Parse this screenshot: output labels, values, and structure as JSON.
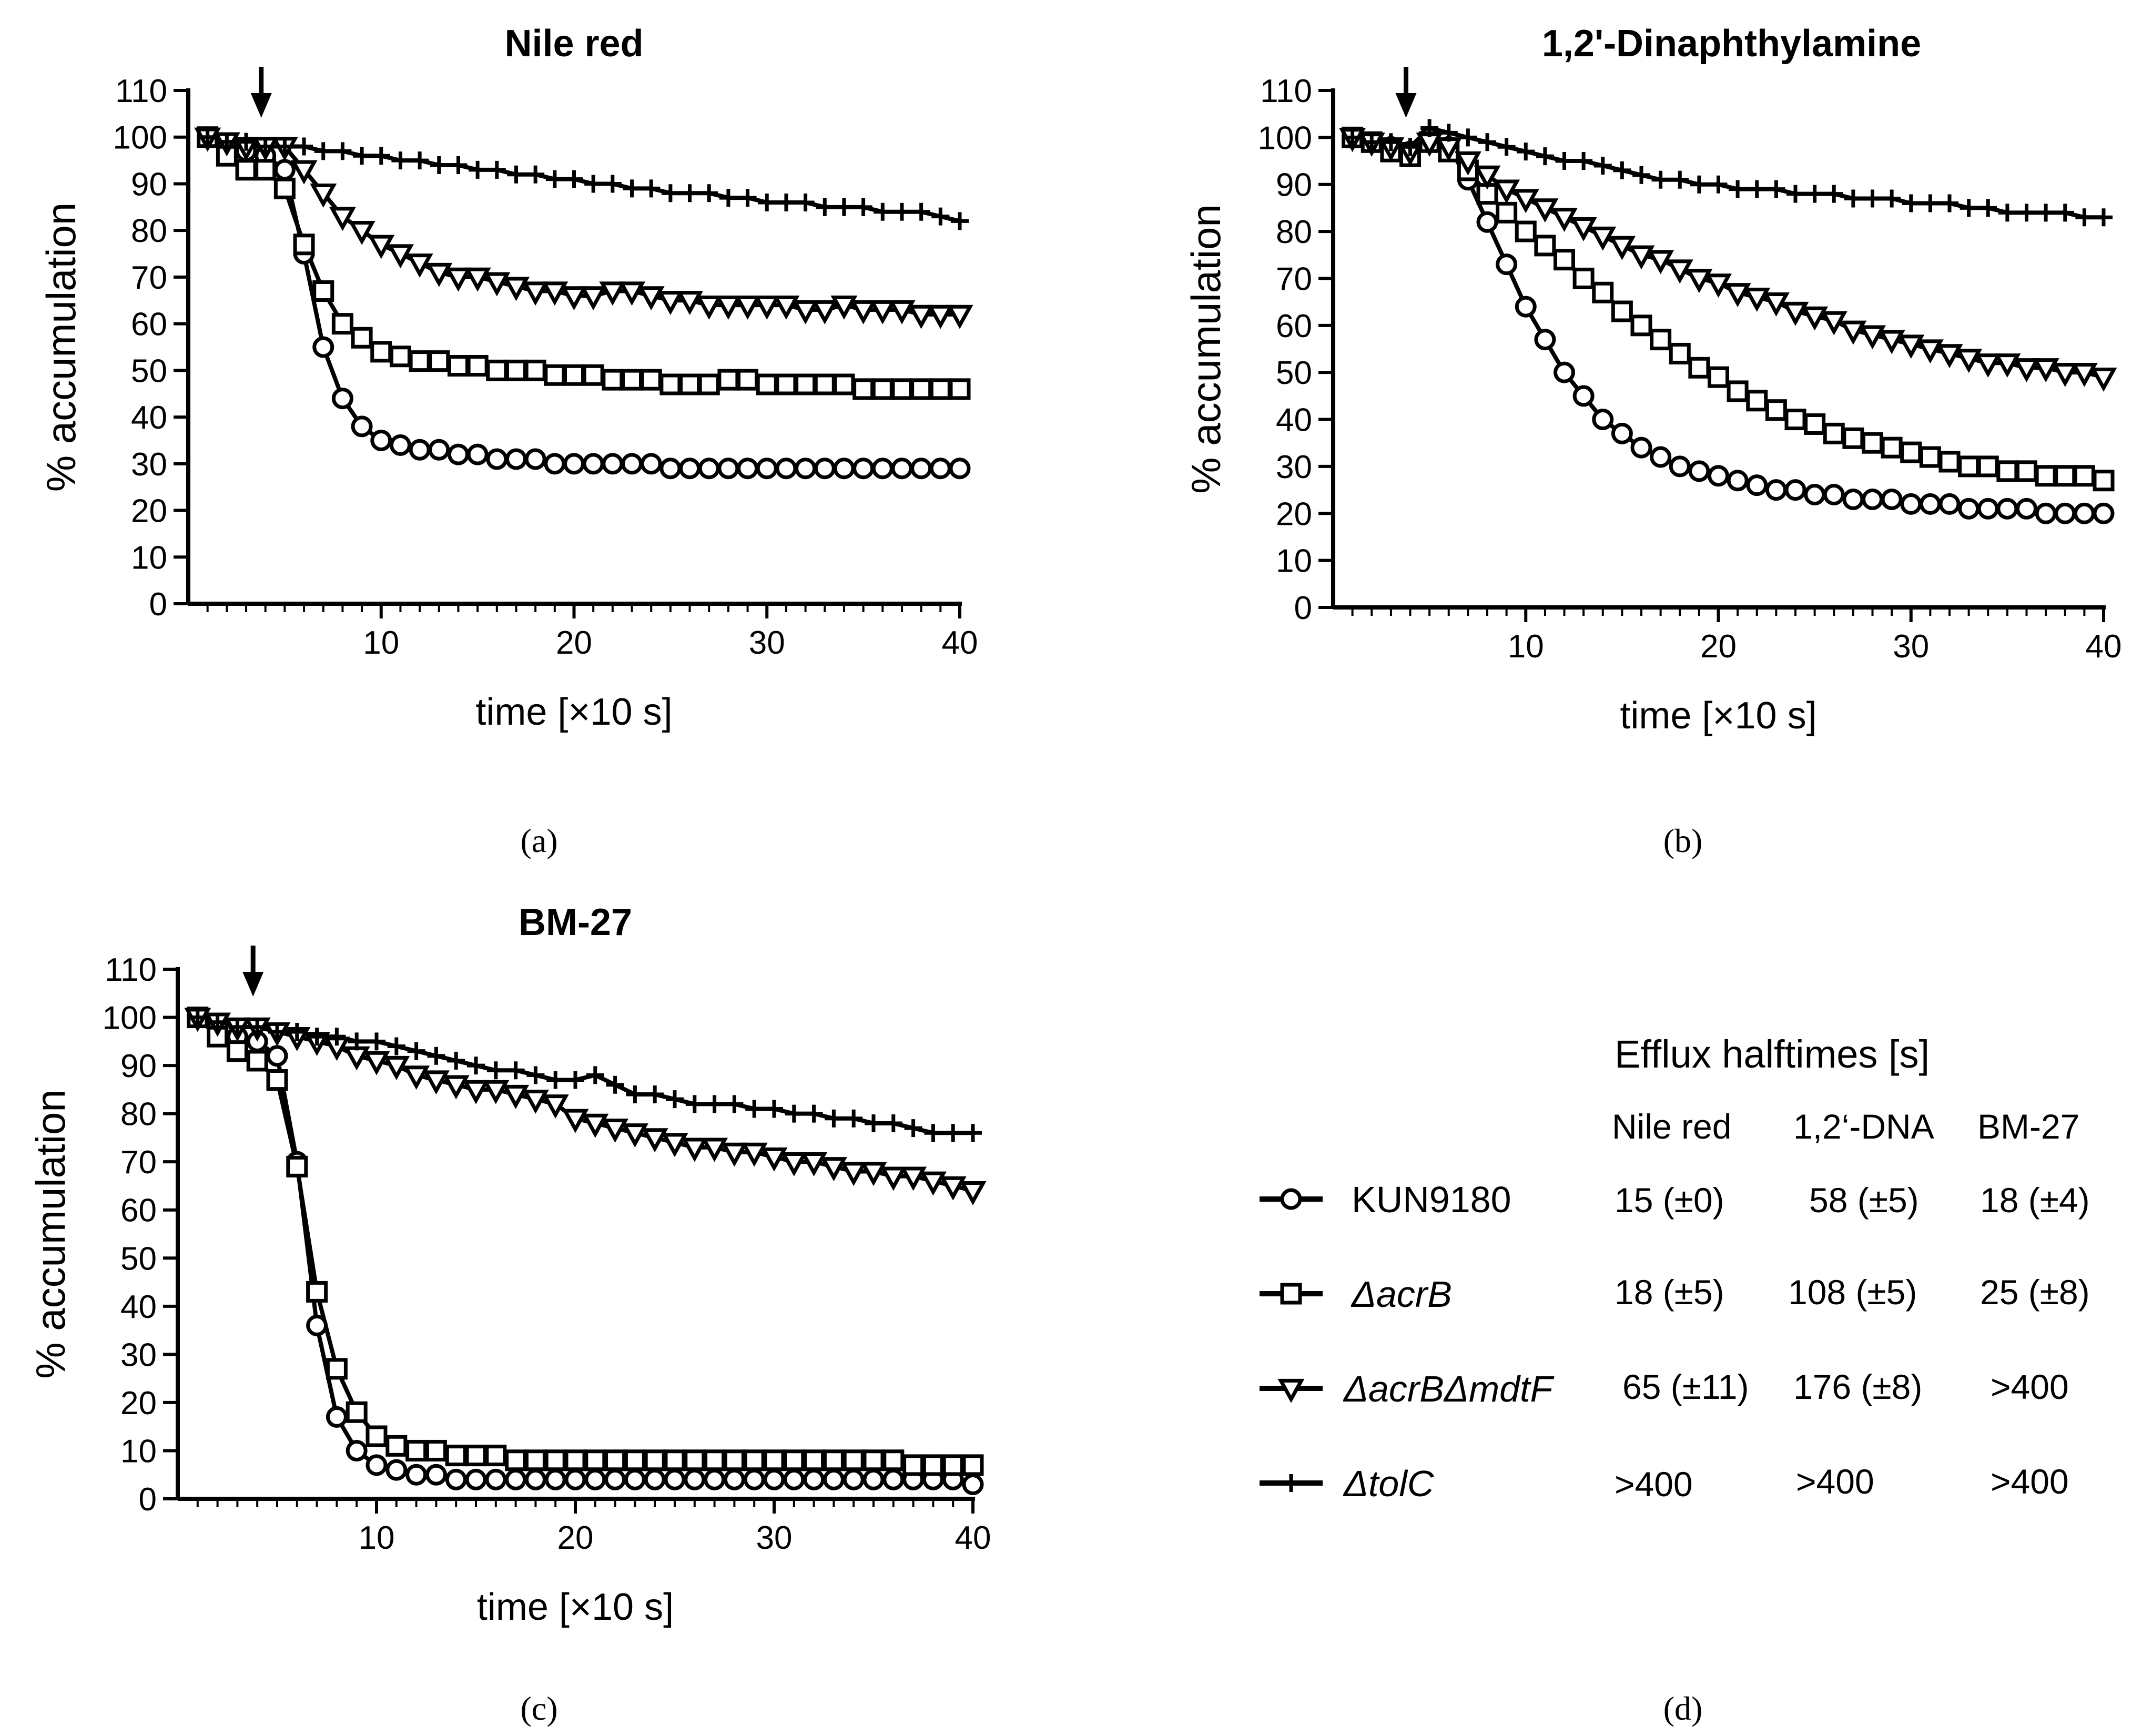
{
  "panel_labels": {
    "a": "(a)",
    "b": "(b)",
    "c": "(c)",
    "d": "(d)"
  },
  "legend_markers": {
    "KUN9180": "circle",
    "ΔacrB": "square",
    "ΔacrBΔmdtF": "triangle-down",
    "ΔtolC": "plus"
  },
  "chart_data": [
    {
      "type": "line",
      "title": "Nile red",
      "xlabel": "time [×10 s]",
      "ylabel": "% accumulation",
      "xlim": [
        0,
        40
      ],
      "ylim": [
        0,
        110
      ],
      "xticks": [
        10,
        20,
        30,
        40
      ],
      "yticks": [
        0,
        10,
        20,
        30,
        40,
        50,
        60,
        70,
        80,
        90,
        100,
        110
      ],
      "arrow_at_x": 4,
      "x": [
        1,
        2,
        3,
        4,
        5,
        6,
        7,
        8,
        9,
        10,
        11,
        12,
        13,
        14,
        15,
        16,
        17,
        18,
        19,
        20,
        21,
        22,
        23,
        24,
        25,
        26,
        27,
        28,
        29,
        30,
        31,
        32,
        33,
        34,
        35,
        36,
        37,
        38,
        39,
        40
      ],
      "series": [
        {
          "name": "KUN9180",
          "marker": "circle",
          "values": [
            100,
            98,
            97,
            96,
            93,
            75,
            55,
            44,
            38,
            35,
            34,
            33,
            33,
            32,
            32,
            31,
            31,
            31,
            30,
            30,
            30,
            30,
            30,
            30,
            29,
            29,
            29,
            29,
            29,
            29,
            29,
            29,
            29,
            29,
            29,
            29,
            29,
            29,
            29,
            29
          ]
        },
        {
          "name": "ΔacrB",
          "marker": "square",
          "values": [
            100,
            96,
            93,
            93,
            89,
            77,
            67,
            60,
            57,
            54,
            53,
            52,
            52,
            51,
            51,
            50,
            50,
            50,
            49,
            49,
            49,
            48,
            48,
            48,
            47,
            47,
            47,
            48,
            48,
            47,
            47,
            47,
            47,
            47,
            46,
            46,
            46,
            46,
            46,
            46
          ]
        },
        {
          "name": "ΔacrBΔmdtF",
          "marker": "triangle-down",
          "values": [
            100,
            99,
            98,
            98,
            98,
            93,
            88,
            83,
            80,
            77,
            75,
            73,
            71,
            70,
            70,
            69,
            68,
            67,
            67,
            66,
            66,
            67,
            67,
            66,
            65,
            65,
            64,
            64,
            64,
            64,
            64,
            63,
            63,
            64,
            63,
            63,
            63,
            62,
            62,
            62
          ]
        },
        {
          "name": "ΔtolC",
          "marker": "plus",
          "values": [
            100,
            99,
            99,
            98,
            98,
            98,
            97,
            97,
            96,
            96,
            95,
            95,
            94,
            94,
            93,
            93,
            92,
            92,
            91,
            91,
            90,
            90,
            89,
            89,
            88,
            88,
            88,
            87,
            87,
            86,
            86,
            86,
            85,
            85,
            85,
            84,
            84,
            84,
            83,
            82
          ]
        }
      ]
    },
    {
      "type": "line",
      "title": "1,2'-Dinaphthylamine",
      "xlabel": "time [×10 s]",
      "ylabel": "% accumulation",
      "xlim": [
        0,
        40
      ],
      "ylim": [
        0,
        110
      ],
      "xticks": [
        10,
        20,
        30,
        40
      ],
      "yticks": [
        0,
        10,
        20,
        30,
        40,
        50,
        60,
        70,
        80,
        90,
        100,
        110
      ],
      "arrow_at_x": 4,
      "x": [
        1,
        2,
        3,
        4,
        5,
        6,
        7,
        8,
        9,
        10,
        11,
        12,
        13,
        14,
        15,
        16,
        17,
        18,
        19,
        20,
        21,
        22,
        23,
        24,
        25,
        26,
        27,
        28,
        29,
        30,
        31,
        32,
        33,
        34,
        35,
        36,
        37,
        38,
        39,
        40
      ],
      "series": [
        {
          "name": "KUN9180",
          "marker": "circle",
          "values": [
            100,
            99,
            98,
            97,
            100,
            98,
            91,
            82,
            73,
            64,
            57,
            50,
            45,
            40,
            37,
            34,
            32,
            30,
            29,
            28,
            27,
            26,
            25,
            25,
            24,
            24,
            23,
            23,
            23,
            22,
            22,
            22,
            21,
            21,
            21,
            21,
            20,
            20,
            20,
            20
          ]
        },
        {
          "name": "ΔacrB",
          "marker": "square",
          "values": [
            100,
            99,
            97,
            96,
            99,
            97,
            93,
            88,
            84,
            80,
            77,
            74,
            70,
            67,
            63,
            60,
            57,
            54,
            51,
            49,
            46,
            44,
            42,
            40,
            39,
            37,
            36,
            35,
            34,
            33,
            32,
            31,
            30,
            30,
            29,
            29,
            28,
            28,
            28,
            27
          ]
        },
        {
          "name": "ΔacrBΔmdtF",
          "marker": "triangle-down",
          "values": [
            100,
            99,
            98,
            97,
            99,
            98,
            95,
            92,
            89,
            87,
            85,
            83,
            81,
            79,
            77,
            75,
            74,
            72,
            70,
            69,
            67,
            66,
            65,
            63,
            62,
            61,
            59,
            58,
            57,
            56,
            55,
            54,
            53,
            52,
            52,
            51,
            51,
            50,
            50,
            49
          ]
        },
        {
          "name": "ΔtolC",
          "marker": "plus",
          "values": [
            100,
            99,
            99,
            98,
            102,
            101,
            100,
            99,
            98,
            97,
            96,
            95,
            95,
            94,
            93,
            92,
            91,
            91,
            90,
            90,
            89,
            89,
            89,
            88,
            88,
            88,
            87,
            87,
            87,
            86,
            86,
            86,
            85,
            85,
            84,
            84,
            84,
            84,
            83,
            83
          ]
        }
      ]
    },
    {
      "type": "line",
      "title": "BM-27",
      "xlabel": "time [×10 s]",
      "ylabel": "% accumulation",
      "xlim": [
        0,
        40
      ],
      "ylim": [
        0,
        110
      ],
      "xticks": [
        10,
        20,
        30,
        40
      ],
      "yticks": [
        0,
        10,
        20,
        30,
        40,
        50,
        60,
        70,
        80,
        90,
        100,
        110
      ],
      "arrow_at_x": 4,
      "x": [
        1,
        2,
        3,
        4,
        5,
        6,
        7,
        8,
        9,
        10,
        11,
        12,
        13,
        14,
        15,
        16,
        17,
        18,
        19,
        20,
        21,
        22,
        23,
        24,
        25,
        26,
        27,
        28,
        29,
        30,
        31,
        32,
        33,
        34,
        35,
        36,
        37,
        38,
        39,
        40
      ],
      "series": [
        {
          "name": "KUN9180",
          "marker": "circle",
          "values": [
            100,
            98,
            96,
            95,
            92,
            70,
            36,
            17,
            10,
            7,
            6,
            5,
            5,
            4,
            4,
            4,
            4,
            4,
            4,
            4,
            4,
            4,
            4,
            4,
            4,
            4,
            4,
            4,
            4,
            4,
            4,
            4,
            4,
            4,
            4,
            4,
            4,
            4,
            4,
            3
          ]
        },
        {
          "name": "ΔacrB",
          "marker": "square",
          "values": [
            100,
            96,
            93,
            91,
            87,
            69,
            43,
            27,
            18,
            13,
            11,
            10,
            10,
            9,
            9,
            9,
            8,
            8,
            8,
            8,
            8,
            8,
            8,
            8,
            8,
            8,
            8,
            8,
            8,
            8,
            8,
            8,
            8,
            8,
            8,
            8,
            7,
            7,
            7,
            7
          ]
        },
        {
          "name": "ΔacrBΔmdtF",
          "marker": "triangle-down",
          "values": [
            100,
            99,
            98,
            98,
            97,
            96,
            95,
            94,
            92,
            91,
            90,
            88,
            87,
            86,
            85,
            85,
            84,
            83,
            82,
            79,
            78,
            77,
            76,
            75,
            74,
            73,
            73,
            72,
            72,
            71,
            70,
            70,
            69,
            68,
            68,
            67,
            67,
            66,
            65,
            64
          ]
        },
        {
          "name": "ΔtolC",
          "marker": "plus",
          "values": [
            100,
            99,
            98,
            98,
            97,
            97,
            96,
            96,
            95,
            95,
            94,
            93,
            92,
            91,
            90,
            89,
            89,
            88,
            87,
            87,
            88,
            86,
            84,
            84,
            83,
            82,
            82,
            82,
            81,
            81,
            80,
            80,
            79,
            79,
            78,
            78,
            77,
            76,
            76,
            76
          ]
        }
      ]
    }
  ],
  "halftimes_table": {
    "title": "Efflux halftimes [s]",
    "columns": [
      "Nile red",
      "1,2‘-DNA",
      "BM-27"
    ],
    "rows": [
      {
        "strain": "KUN9180",
        "marker": "circle",
        "values": [
          "15 (±0)",
          "58 (±5)",
          "18 (±4)"
        ]
      },
      {
        "strain": "ΔacrB",
        "marker": "square",
        "values": [
          "18 (±5)",
          "108 (±5)",
          "25 (±8)"
        ]
      },
      {
        "strain": "ΔacrBΔmdtF",
        "marker": "triangle-down",
        "values": [
          "65 (±11)",
          "176 (±8)",
          ">400"
        ]
      },
      {
        "strain": "ΔtolC",
        "marker": "plus",
        "values": [
          ">400",
          ">400",
          ">400"
        ]
      }
    ]
  }
}
